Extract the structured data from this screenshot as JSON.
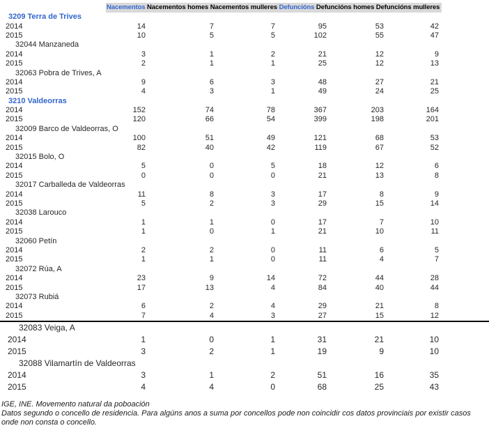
{
  "colors": {
    "link_blue": "#3366CC",
    "header_bg": "#D9D9D9",
    "divider": "#000000",
    "body_text": "#262626"
  },
  "source_note": {
    "line1": "IGE, INE. Movemento natural da poboación",
    "line2": "Datos segundo o concello de residencia. Para algúns anos a suma por concellos pode non coincidir cos datos provinciais por existir casos onde non consta o concello."
  },
  "chart_data": {
    "type": "table",
    "columns": [
      {
        "label": "Nacementos",
        "link": true
      },
      {
        "label": "Nacementos homes",
        "link": false
      },
      {
        "label": "Nacementos mulleres",
        "link": false
      },
      {
        "label": "Defuncións",
        "link": true
      },
      {
        "label": "Defuncións homes",
        "link": false
      },
      {
        "label": "Defuncións mulleres",
        "link": false
      }
    ],
    "rows": [
      {
        "kind": "comarca",
        "label": "3209 Terra de Trives"
      },
      {
        "kind": "year",
        "label": "2014",
        "values": [
          14,
          7,
          7,
          95,
          53,
          42
        ]
      },
      {
        "kind": "year",
        "label": "2015",
        "values": [
          10,
          5,
          5,
          102,
          55,
          47
        ]
      },
      {
        "kind": "concello",
        "label": "32044 Manzaneda"
      },
      {
        "kind": "year",
        "label": "2014",
        "values": [
          3,
          1,
          2,
          21,
          12,
          9
        ]
      },
      {
        "kind": "year",
        "label": "2015",
        "values": [
          2,
          1,
          1,
          25,
          12,
          13
        ]
      },
      {
        "kind": "concello",
        "label": "32063 Pobra de Trives, A"
      },
      {
        "kind": "year",
        "label": "2014",
        "values": [
          9,
          6,
          3,
          48,
          27,
          21
        ]
      },
      {
        "kind": "year",
        "label": "2015",
        "values": [
          4,
          3,
          1,
          49,
          24,
          25
        ]
      },
      {
        "kind": "comarca",
        "label": "3210 Valdeorras"
      },
      {
        "kind": "year",
        "label": "2014",
        "values": [
          152,
          74,
          78,
          367,
          203,
          164
        ]
      },
      {
        "kind": "year",
        "label": "2015",
        "values": [
          120,
          66,
          54,
          399,
          198,
          201
        ]
      },
      {
        "kind": "concello",
        "label": "32009 Barco de Valdeorras, O"
      },
      {
        "kind": "year",
        "label": "2014",
        "values": [
          100,
          51,
          49,
          121,
          68,
          53
        ]
      },
      {
        "kind": "year",
        "label": "2015",
        "values": [
          82,
          40,
          42,
          119,
          67,
          52
        ]
      },
      {
        "kind": "concello",
        "label": "32015 Bolo, O"
      },
      {
        "kind": "year",
        "label": "2014",
        "values": [
          5,
          0,
          5,
          18,
          12,
          6
        ]
      },
      {
        "kind": "year",
        "label": "2015",
        "values": [
          0,
          0,
          0,
          21,
          13,
          8
        ]
      },
      {
        "kind": "concello",
        "label": "32017 Carballeda de Valdeorras"
      },
      {
        "kind": "year",
        "label": "2014",
        "values": [
          11,
          8,
          3,
          17,
          8,
          9
        ]
      },
      {
        "kind": "year",
        "label": "2015",
        "values": [
          5,
          2,
          3,
          29,
          15,
          14
        ]
      },
      {
        "kind": "concello",
        "label": "32038 Larouco"
      },
      {
        "kind": "year",
        "label": "2014",
        "values": [
          1,
          1,
          0,
          17,
          7,
          10
        ]
      },
      {
        "kind": "year",
        "label": "2015",
        "values": [
          1,
          0,
          1,
          21,
          10,
          11
        ]
      },
      {
        "kind": "concello",
        "label": "32060 Petín"
      },
      {
        "kind": "year",
        "label": "2014",
        "values": [
          2,
          2,
          0,
          11,
          6,
          5
        ]
      },
      {
        "kind": "year",
        "label": "2015",
        "values": [
          1,
          1,
          0,
          11,
          4,
          7
        ]
      },
      {
        "kind": "concello",
        "label": "32072 Rúa, A"
      },
      {
        "kind": "year",
        "label": "2014",
        "values": [
          23,
          9,
          14,
          72,
          44,
          28
        ]
      },
      {
        "kind": "year",
        "label": "2015",
        "values": [
          17,
          13,
          4,
          84,
          40,
          44
        ]
      },
      {
        "kind": "concello",
        "label": "32073 Rubiá"
      },
      {
        "kind": "year",
        "label": "2014",
        "values": [
          6,
          2,
          4,
          29,
          21,
          8
        ]
      },
      {
        "kind": "year",
        "label": "2015",
        "values": [
          7,
          4,
          3,
          27,
          15,
          12
        ],
        "divider_after": true
      },
      {
        "kind": "concello",
        "label": "32083 Veiga, A",
        "large": true
      },
      {
        "kind": "year",
        "label": "2014",
        "values": [
          1,
          0,
          1,
          31,
          21,
          10
        ],
        "large": true
      },
      {
        "kind": "year",
        "label": "2015",
        "values": [
          3,
          2,
          1,
          19,
          9,
          10
        ],
        "large": true
      },
      {
        "kind": "concello",
        "label": "32088 Vilamartín de Valdeorras",
        "large": true
      },
      {
        "kind": "year",
        "label": "2014",
        "values": [
          3,
          1,
          2,
          51,
          16,
          35
        ],
        "large": true
      },
      {
        "kind": "year",
        "label": "2015",
        "values": [
          4,
          4,
          0,
          68,
          25,
          43
        ],
        "large": true
      }
    ]
  }
}
